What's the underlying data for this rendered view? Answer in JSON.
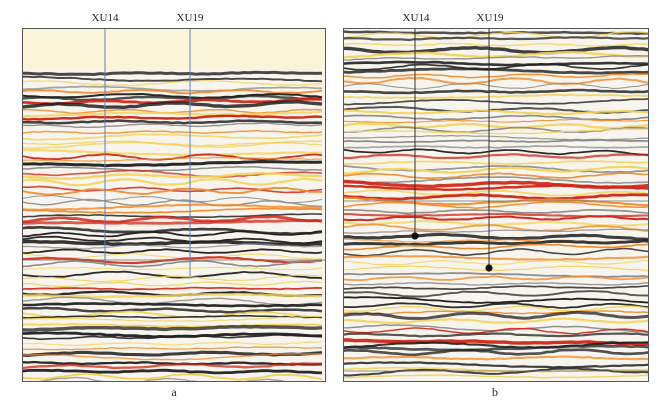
{
  "figure": {
    "panels": [
      {
        "id": "a",
        "caption": "a",
        "wells": [
          {
            "label": "XU14"
          },
          {
            "label": "XU19"
          }
        ]
      },
      {
        "id": "b",
        "caption": "b",
        "wells": [
          {
            "label": "XU14"
          },
          {
            "label": "XU19"
          }
        ]
      }
    ],
    "colors": {
      "trough": "#222222",
      "peak_strong": "#d0281a",
      "peak_mid": "#f08a2a",
      "peak_weak": "#f3d35a",
      "background_top": "#faf5d8",
      "well_line_a": "#5b7fc4",
      "well_line_b": "#333333"
    }
  }
}
